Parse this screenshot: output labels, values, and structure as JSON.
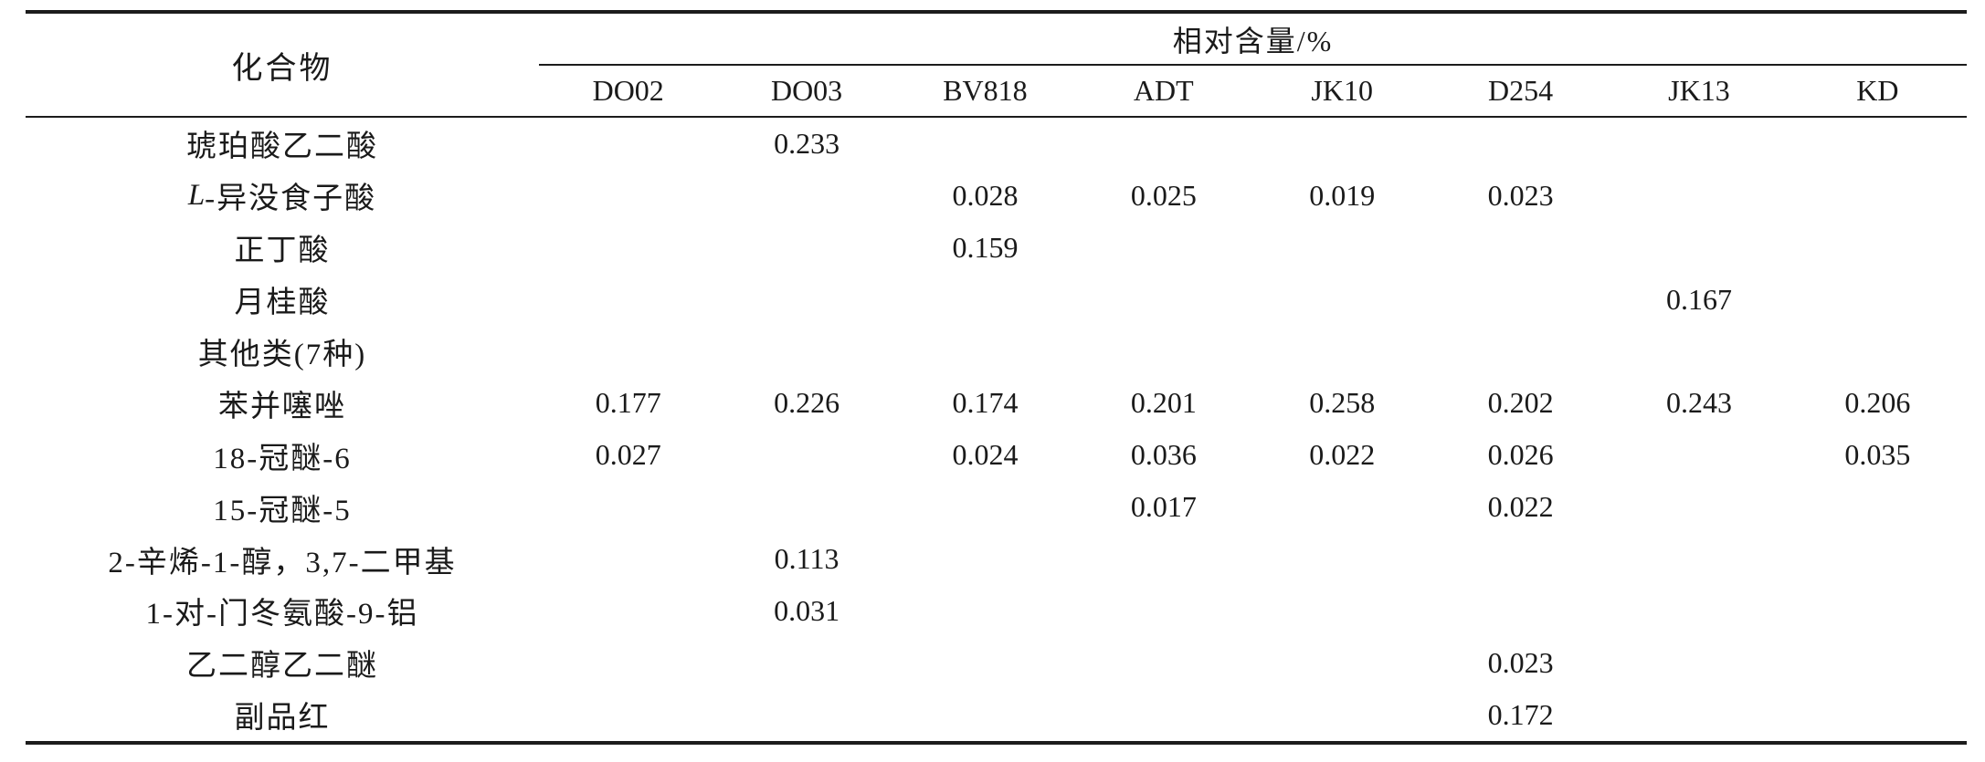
{
  "table": {
    "compound_header": "化合物",
    "group_header": "相对含量/%",
    "columns": [
      "DO02",
      "DO03",
      "BV818",
      "ADT",
      "JK10",
      "D254",
      "JK13",
      "KD"
    ],
    "rows": [
      {
        "italic_prefix": "",
        "name": "琥珀酸乙二酸",
        "values": [
          "",
          "0.233",
          "",
          "",
          "",
          "",
          "",
          ""
        ]
      },
      {
        "italic_prefix": "L",
        "name": "-异没食子酸",
        "values": [
          "",
          "",
          "0.028",
          "0.025",
          "0.019",
          "0.023",
          "",
          ""
        ]
      },
      {
        "italic_prefix": "",
        "name": "正丁酸",
        "values": [
          "",
          "",
          "0.159",
          "",
          "",
          "",
          "",
          ""
        ]
      },
      {
        "italic_prefix": "",
        "name": "月桂酸",
        "values": [
          "",
          "",
          "",
          "",
          "",
          "",
          "0.167",
          ""
        ]
      },
      {
        "italic_prefix": "",
        "name": "其他类(7种)",
        "values": [
          "",
          "",
          "",
          "",
          "",
          "",
          "",
          ""
        ]
      },
      {
        "italic_prefix": "",
        "name": "苯并噻唑",
        "values": [
          "0.177",
          "0.226",
          "0.174",
          "0.201",
          "0.258",
          "0.202",
          "0.243",
          "0.206"
        ]
      },
      {
        "italic_prefix": "",
        "name": "18-冠醚-6",
        "values": [
          "0.027",
          "",
          "0.024",
          "0.036",
          "0.022",
          "0.026",
          "",
          "0.035"
        ]
      },
      {
        "italic_prefix": "",
        "name": "15-冠醚-5",
        "values": [
          "",
          "",
          "",
          "0.017",
          "",
          "0.022",
          "",
          ""
        ]
      },
      {
        "italic_prefix": "",
        "name": "2-辛烯-1-醇，3,7-二甲基",
        "values": [
          "",
          "0.113",
          "",
          "",
          "",
          "",
          "",
          ""
        ]
      },
      {
        "italic_prefix": "",
        "name": "1-对-门冬氨酸-9-铝",
        "values": [
          "",
          "0.031",
          "",
          "",
          "",
          "",
          "",
          ""
        ]
      },
      {
        "italic_prefix": "",
        "name": "乙二醇乙二醚",
        "values": [
          "",
          "",
          "",
          "",
          "",
          "0.023",
          "",
          ""
        ]
      },
      {
        "italic_prefix": "",
        "name": "副品红",
        "values": [
          "",
          "",
          "",
          "",
          "",
          "0.172",
          "",
          ""
        ]
      }
    ],
    "colors": {
      "rule": "#1c1c1c",
      "text": "#1a1a1a",
      "background": "#ffffff"
    }
  }
}
